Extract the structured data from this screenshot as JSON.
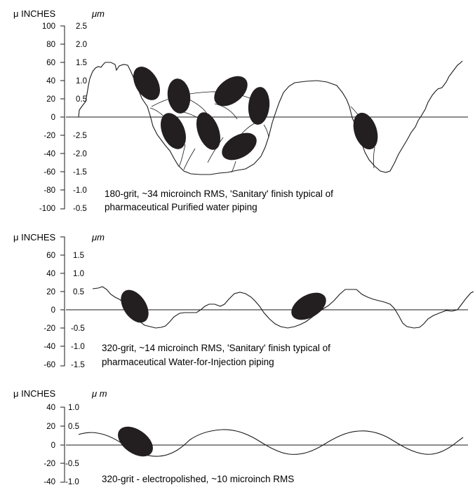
{
  "panels": [
    {
      "id": "p180",
      "unit_left": "μ INCHES",
      "unit_right": "μm",
      "uin_ticks": [
        "100",
        "80",
        "60",
        "40",
        "20",
        "0",
        "-20",
        "-40",
        "-60",
        "-80",
        "-100"
      ],
      "um_ticks": [
        "2.5",
        "2.0",
        "1.5",
        "1.0",
        "0.5",
        "-2.5",
        "-2.0",
        "-1.5",
        "-1.0",
        "-0.5"
      ],
      "caption_line1": "180-grit, ~34 microinch RMS, 'Sanitary' finish typical of",
      "caption_line2": "pharmaceutical Purified water piping"
    },
    {
      "id": "p320",
      "unit_left": "μ INCHES",
      "unit_right": "μm",
      "uin_ticks": [
        "60",
        "40",
        "20",
        "0",
        "-20",
        "-40",
        "-60"
      ],
      "um_ticks": [
        "1.5",
        "1.0",
        "0.5",
        "-0.5",
        "-1.0",
        "-1.5"
      ],
      "caption_line1": "320-grit, ~14 microinch RMS,  'Sanitary' finish typical of",
      "caption_line2": "pharmaceutical Water-for-Injection piping"
    },
    {
      "id": "p320ep",
      "unit_left": "μ INCHES",
      "unit_right": "μ m",
      "uin_ticks": [
        "40",
        "20",
        "0",
        "-20",
        "-40"
      ],
      "um_ticks": [
        "1.0",
        "0.5",
        "-0.5",
        "-1.0"
      ],
      "caption_line1": "320-grit - electropolished, ~10 microinch RMS"
    }
  ]
}
